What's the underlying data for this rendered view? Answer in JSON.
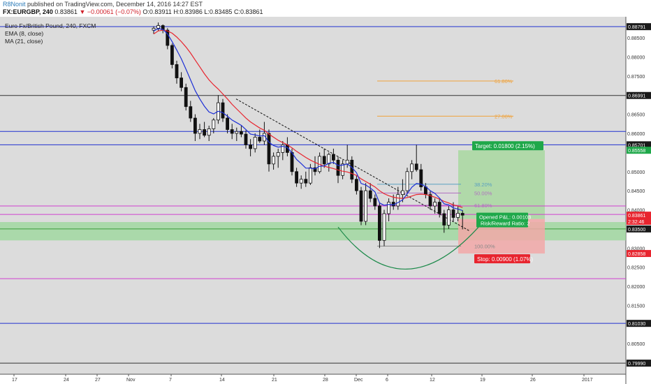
{
  "header": {
    "author": "R8Nonit",
    "published": "published on TradingView.com, December 14, 2016 14:27 EST",
    "symbol": "FX:EURGBP, 240",
    "change": "▼ −0.00061 (−0.07%)",
    "open": "O:0.83911",
    "high": "H:0.83986",
    "low": "L:0.83485",
    "close": "C:0.83861"
  },
  "legend": {
    "title": "Euro Fx/British Pound, 240, FXCM",
    "ema": "EMA (8, close)",
    "ma": "MA (21, close)"
  },
  "colors": {
    "background": "#dcdcdc",
    "ema": "#1d2fd6",
    "ma": "#e8242e",
    "fib_orange": "#f0a23a",
    "fib_purple": "#c77bd0",
    "target_zone": "#a8d8a0",
    "stop_zone": "#f2a8a8",
    "support_zone": "#9ad89a",
    "green_label": "#1fa84a",
    "red_label": "#e8242e"
  },
  "chart_data": {
    "type": "candlestick",
    "instrument": "EURGBP",
    "timeframe": "240",
    "ylim": [
      0.797,
      0.8905
    ],
    "y_ticks": [
      "0.88500",
      "0.88000",
      "0.87500",
      "0.86500",
      "0.86000",
      "0.85000",
      "0.84500",
      "0.84000",
      "0.83000",
      "0.82500",
      "0.82000",
      "0.81500",
      "0.80500"
    ],
    "x_ticks": [
      "17",
      "24",
      "27",
      "Nov",
      "7",
      "14",
      "21",
      "28",
      "Dec",
      "6",
      "12",
      "19",
      "26",
      "2017"
    ],
    "price_labels": [
      {
        "text": "0.88791",
        "value": 0.88791,
        "style": "dark"
      },
      {
        "text": "0.86991",
        "value": 0.86991,
        "style": "dark"
      },
      {
        "text": "0.85701",
        "value": 0.85701,
        "style": "dark"
      },
      {
        "text": "0.85558",
        "value": 0.85558,
        "style": "green"
      },
      {
        "text": "0.83861",
        "value": 0.83861,
        "style": "red"
      },
      {
        "text": "2:32:46",
        "value": 0.837,
        "style": "red"
      },
      {
        "text": "0.83500",
        "value": 0.835,
        "style": "dark"
      },
      {
        "text": "0.82858",
        "value": 0.82858,
        "style": "red"
      },
      {
        "text": "0.81030",
        "value": 0.8103,
        "style": "dark"
      },
      {
        "text": "0.79990",
        "value": 0.7999,
        "style": "dark"
      }
    ],
    "horizontal_levels": [
      {
        "value": 0.88791,
        "color": "#2030d0"
      },
      {
        "value": 0.86991,
        "color": "#333333"
      },
      {
        "value": 0.8605,
        "color": "#2030d0"
      },
      {
        "value": 0.85701,
        "color": "#2030d0"
      },
      {
        "value": 0.841,
        "color": "#d040d0"
      },
      {
        "value": 0.8388,
        "color": "#d040d0"
      },
      {
        "value": 0.822,
        "color": "#d040d0"
      },
      {
        "value": 0.8103,
        "color": "#2030d0"
      },
      {
        "value": 0.7999,
        "color": "#333333"
      }
    ],
    "support_zone": {
      "from": 0.832,
      "to": 0.8368
    },
    "fib_levels": [
      {
        "label": "61.80%",
        "value": 0.8737,
        "color": "#f0a23a"
      },
      {
        "label": "27.00%",
        "value": 0.8645,
        "color": "#f0a23a"
      },
      {
        "label": "38.20%",
        "value": 0.8467,
        "color": "#5aa0c0"
      },
      {
        "label": "50.00%",
        "value": 0.8444,
        "color": "#b070c0"
      },
      {
        "label": "61.80%",
        "value": 0.8412,
        "color": "#b070c0"
      },
      {
        "label": "100.00%",
        "value": 0.8305,
        "color": "#888888"
      }
    ],
    "position": {
      "entry": 0.8376,
      "target": 0.85558,
      "stop": 0.82858,
      "target_label": "Target: 0.01800 (2.15%)",
      "stop_label": "Stop: 0.00900 (1.07%)",
      "pl_label": "Opened P&L: 0.00103",
      "rr_label": "Risk/Reward Ratio: 2"
    },
    "candles": [
      [
        0.887,
        0.888,
        0.886,
        0.8875
      ],
      [
        0.8875,
        0.889,
        0.8868,
        0.8882
      ],
      [
        0.8882,
        0.8885,
        0.8862,
        0.887
      ],
      [
        0.887,
        0.8875,
        0.882,
        0.883
      ],
      [
        0.883,
        0.8835,
        0.877,
        0.878
      ],
      [
        0.878,
        0.879,
        0.873,
        0.8745
      ],
      [
        0.8745,
        0.876,
        0.871,
        0.872
      ],
      [
        0.872,
        0.873,
        0.866,
        0.867
      ],
      [
        0.867,
        0.8685,
        0.863,
        0.864
      ],
      [
        0.864,
        0.865,
        0.858,
        0.86
      ],
      [
        0.86,
        0.8625,
        0.8585,
        0.861
      ],
      [
        0.861,
        0.863,
        0.859,
        0.8595
      ],
      [
        0.8595,
        0.862,
        0.858,
        0.8612
      ],
      [
        0.8612,
        0.864,
        0.86,
        0.8635
      ],
      [
        0.8635,
        0.87,
        0.8625,
        0.868
      ],
      [
        0.868,
        0.869,
        0.863,
        0.864
      ],
      [
        0.864,
        0.865,
        0.86,
        0.861
      ],
      [
        0.861,
        0.8625,
        0.8585,
        0.86
      ],
      [
        0.86,
        0.8615,
        0.858,
        0.8605
      ],
      [
        0.8605,
        0.862,
        0.859,
        0.8598
      ],
      [
        0.8598,
        0.8608,
        0.856,
        0.857
      ],
      [
        0.857,
        0.8585,
        0.854,
        0.856
      ],
      [
        0.856,
        0.86,
        0.855,
        0.859
      ],
      [
        0.859,
        0.861,
        0.8575,
        0.858
      ],
      [
        0.858,
        0.863,
        0.857,
        0.86
      ],
      [
        0.86,
        0.861,
        0.85,
        0.852
      ],
      [
        0.852,
        0.855,
        0.8505,
        0.854
      ],
      [
        0.854,
        0.856,
        0.851,
        0.855
      ],
      [
        0.855,
        0.858,
        0.853,
        0.857
      ],
      [
        0.857,
        0.859,
        0.854,
        0.855
      ],
      [
        0.855,
        0.856,
        0.849,
        0.85
      ],
      [
        0.85,
        0.851,
        0.846,
        0.847
      ],
      [
        0.847,
        0.849,
        0.8455,
        0.848
      ],
      [
        0.848,
        0.85,
        0.846,
        0.847
      ],
      [
        0.847,
        0.852,
        0.8465,
        0.851
      ],
      [
        0.851,
        0.854,
        0.849,
        0.85
      ],
      [
        0.85,
        0.855,
        0.8495,
        0.854
      ],
      [
        0.854,
        0.856,
        0.851,
        0.852
      ],
      [
        0.852,
        0.855,
        0.85,
        0.8545
      ],
      [
        0.8545,
        0.856,
        0.852,
        0.853
      ],
      [
        0.853,
        0.854,
        0.847,
        0.849
      ],
      [
        0.849,
        0.853,
        0.848,
        0.852
      ],
      [
        0.852,
        0.857,
        0.851,
        0.853
      ],
      [
        0.853,
        0.854,
        0.847,
        0.848
      ],
      [
        0.848,
        0.849,
        0.844,
        0.845
      ],
      [
        0.845,
        0.846,
        0.836,
        0.837
      ],
      [
        0.837,
        0.847,
        0.836,
        0.845
      ],
      [
        0.845,
        0.847,
        0.842,
        0.843
      ],
      [
        0.843,
        0.844,
        0.84,
        0.841
      ],
      [
        0.841,
        0.842,
        0.83,
        0.832
      ],
      [
        0.832,
        0.84,
        0.8305,
        0.839
      ],
      [
        0.839,
        0.843,
        0.837,
        0.842
      ],
      [
        0.842,
        0.844,
        0.84,
        0.841
      ],
      [
        0.841,
        0.846,
        0.84,
        0.844
      ],
      [
        0.844,
        0.848,
        0.842,
        0.845
      ],
      [
        0.845,
        0.851,
        0.844,
        0.85
      ],
      [
        0.85,
        0.853,
        0.848,
        0.852
      ],
      [
        0.852,
        0.857,
        0.85,
        0.8505
      ],
      [
        0.8505,
        0.852,
        0.845,
        0.846
      ],
      [
        0.846,
        0.847,
        0.843,
        0.844
      ],
      [
        0.844,
        0.845,
        0.84,
        0.841
      ],
      [
        0.841,
        0.843,
        0.839,
        0.842
      ],
      [
        0.842,
        0.843,
        0.838,
        0.839
      ],
      [
        0.839,
        0.84,
        0.834,
        0.836
      ],
      [
        0.836,
        0.841,
        0.835,
        0.84
      ],
      [
        0.84,
        0.842,
        0.837,
        0.838
      ],
      [
        0.838,
        0.841,
        0.837,
        0.8391
      ],
      [
        0.8391,
        0.8399,
        0.8349,
        0.8386
      ]
    ],
    "ema": [
      0.8868,
      0.8874,
      0.8872,
      0.886,
      0.884,
      0.8818,
      0.8795,
      0.8768,
      0.874,
      0.8712,
      0.869,
      0.8671,
      0.8656,
      0.8651,
      0.8658,
      0.8654,
      0.8645,
      0.8635,
      0.8628,
      0.8621,
      0.861,
      0.8598,
      0.8596,
      0.8593,
      0.8594,
      0.8577,
      0.8568,
      0.8564,
      0.8566,
      0.8563,
      0.8549,
      0.8532,
      0.8521,
      0.8509,
      0.8509,
      0.8507,
      0.8514,
      0.8515,
      0.8522,
      0.8524,
      0.8516,
      0.8517,
      0.852,
      0.8511,
      0.8497,
      0.8469,
      0.8465,
      0.8457,
      0.8447,
      0.8418,
      0.8412,
      0.8414,
      0.8413,
      0.8419,
      0.8426,
      0.8442,
      0.8459,
      0.8469,
      0.8467,
      0.8461,
      0.845,
      0.8443,
      0.8431,
      0.8416,
      0.8413,
      0.8405,
      0.8402,
      0.8398
    ],
    "ma": [
      0.886,
      0.8868,
      0.887,
      0.8868,
      0.8862,
      0.8852,
      0.884,
      0.8826,
      0.881,
      0.8792,
      0.8774,
      0.8756,
      0.874,
      0.8727,
      0.8716,
      0.8703,
      0.869,
      0.8676,
      0.8664,
      0.8652,
      0.864,
      0.863,
      0.8622,
      0.8614,
      0.8608,
      0.8598,
      0.859,
      0.8582,
      0.8576,
      0.857,
      0.8562,
      0.8553,
      0.8545,
      0.8537,
      0.853,
      0.8524,
      0.8519,
      0.8514,
      0.8511,
      0.8508,
      0.8504,
      0.8501,
      0.8499,
      0.8495,
      0.849,
      0.8481,
      0.8474,
      0.8467,
      0.846,
      0.845,
      0.8442,
      0.8437,
      0.8433,
      0.8431,
      0.843,
      0.8432,
      0.8436,
      0.844,
      0.8441,
      0.844,
      0.8437,
      0.8433,
      0.8428,
      0.8422,
      0.8418,
      0.8413,
      0.841,
      0.8406
    ]
  }
}
